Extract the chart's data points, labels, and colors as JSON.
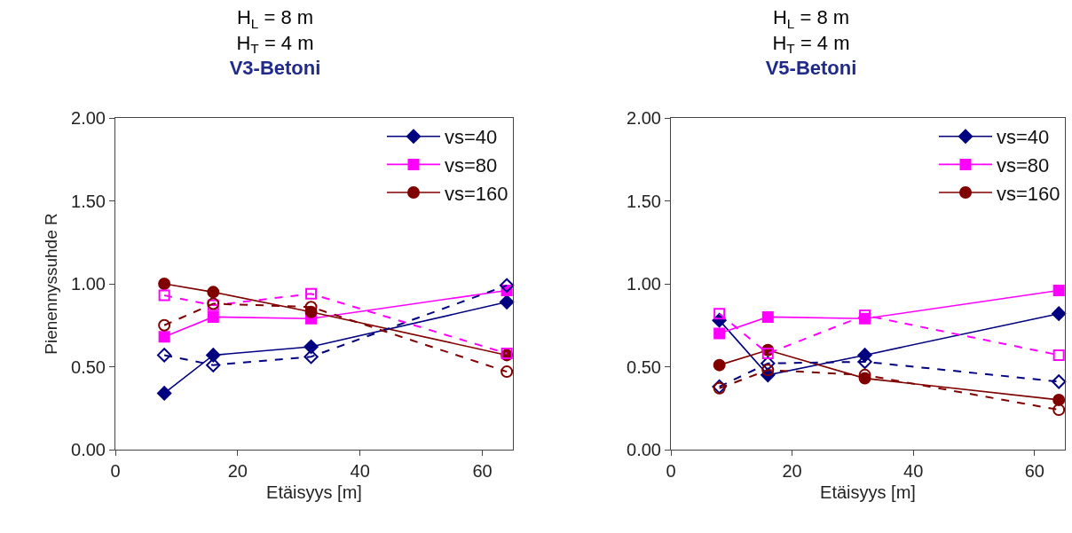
{
  "chart_data": [
    {
      "type": "line",
      "title": "H$_{L}$ = 8 m\nH$_{T}$ = 4 m",
      "subtitle": "V3-Betoni",
      "xlabel": "Etäisyys [m]",
      "ylabel": "Pienennyssuhde R",
      "x": [
        8,
        16,
        32,
        64
      ],
      "xlim": [
        0,
        65
      ],
      "xticks": [
        0,
        20,
        40,
        60
      ],
      "ylim": [
        0,
        2
      ],
      "yticks": [
        {
          "value": 0,
          "label": "0.00"
        },
        {
          "value": 0.5,
          "label": "0.50"
        },
        {
          "value": 1,
          "label": "1.00"
        },
        {
          "value": 1.5,
          "label": "1.50"
        },
        {
          "value": 2,
          "label": "2.00"
        }
      ],
      "grid": false,
      "legend": "top right",
      "series": [
        {
          "name": "vs=40",
          "color": "#000080",
          "marker": "diamond",
          "line_style": "solid",
          "values": [
            0.34,
            0.57,
            0.62,
            0.89
          ]
        },
        {
          "name": "vs=80",
          "color": "#ff00ff",
          "marker": "square",
          "line_style": "solid",
          "values": [
            0.68,
            0.8,
            0.79,
            0.96
          ]
        },
        {
          "name": "vs=160",
          "color": "#800000",
          "marker": "circle",
          "line_style": "solid",
          "values": [
            1.0,
            0.95,
            0.83,
            0.57
          ]
        },
        {
          "color": "#000080",
          "marker": "diamond",
          "line_style": "dashed",
          "values": [
            0.57,
            0.51,
            0.56,
            0.99
          ]
        },
        {
          "color": "#ff00ff",
          "marker": "square",
          "line_style": "dashed",
          "values": [
            0.93,
            0.87,
            0.94,
            0.58
          ]
        },
        {
          "color": "#800000",
          "marker": "circle",
          "line_style": "dashed",
          "values": [
            0.75,
            0.88,
            0.86,
            0.47
          ]
        }
      ]
    },
    {
      "type": "line",
      "title": "H$_{L}$ = 8 m\nH$_{T}$ = 4 m",
      "subtitle": "V5-Betoni",
      "xlabel": "Etäisyys [m]",
      "x": [
        8,
        16,
        32,
        64
      ],
      "xlim": [
        0,
        65
      ],
      "xticks": [
        0,
        20,
        40,
        60
      ],
      "ylim": [
        0,
        2
      ],
      "yticks": [
        {
          "value": 0,
          "label": "0.00"
        },
        {
          "value": 0.5,
          "label": "0.50"
        },
        {
          "value": 1,
          "label": "1.00"
        },
        {
          "value": 1.5,
          "label": "1.50"
        },
        {
          "value": 2,
          "label": "2.00"
        }
      ],
      "grid": false,
      "legend": "top right",
      "series": [
        {
          "name": "vs=40",
          "color": "#000080",
          "marker": "diamond",
          "line_style": "solid",
          "values": [
            0.78,
            0.45,
            0.57,
            0.82
          ]
        },
        {
          "name": "vs=80",
          "color": "#ff00ff",
          "marker": "square",
          "line_style": "solid",
          "values": [
            0.7,
            0.8,
            0.79,
            0.96
          ]
        },
        {
          "name": "vs=160",
          "color": "#800000",
          "marker": "circle",
          "line_style": "solid",
          "values": [
            0.51,
            0.6,
            0.43,
            0.3
          ]
        },
        {
          "color": "#000080",
          "marker": "diamond",
          "line_style": "dashed",
          "values": [
            0.38,
            0.52,
            0.53,
            0.41
          ]
        },
        {
          "color": "#ff00ff",
          "marker": "square",
          "line_style": "dashed",
          "values": [
            0.82,
            0.58,
            0.81,
            0.57
          ]
        },
        {
          "color": "#800000",
          "marker": "circle",
          "line_style": "dashed",
          "values": [
            0.37,
            0.48,
            0.45,
            0.24
          ]
        }
      ]
    }
  ]
}
